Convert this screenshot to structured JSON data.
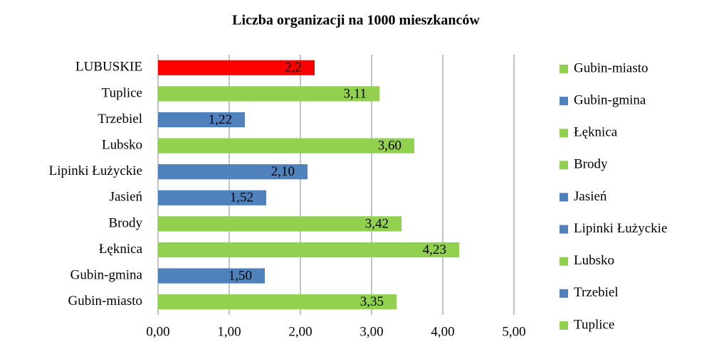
{
  "chart_data": {
    "type": "bar",
    "orientation": "horizontal",
    "title": "Liczba organizacji na 1000 mieszkanców",
    "categories": [
      "Gubin-miasto",
      "Gubin-gmina",
      "Łęknica",
      "Brody",
      "Jasień",
      "Lipinki Łużyckie",
      "Lubsko",
      "Trzebiel",
      "Tuplice",
      "LUBUSKIE"
    ],
    "values": [
      3.35,
      1.5,
      4.23,
      3.42,
      1.52,
      2.1,
      3.6,
      1.22,
      3.11,
      2.2
    ],
    "value_labels": [
      "3,35",
      "1,50",
      "4,23",
      "3,42",
      "1,52",
      "2,10",
      "3,60",
      "1,22",
      "3,11",
      "2,2"
    ],
    "colors": [
      "#92d050",
      "#4f81bd",
      "#92d050",
      "#92d050",
      "#4f81bd",
      "#4f81bd",
      "#92d050",
      "#4f81bd",
      "#92d050",
      "#ff0000"
    ],
    "legend": [
      {
        "name": "Gubin-miasto",
        "color": "#92d050"
      },
      {
        "name": "Gubin-gmina",
        "color": "#4f81bd"
      },
      {
        "name": "Łęknica",
        "color": "#92d050"
      },
      {
        "name": "Brody",
        "color": "#92d050"
      },
      {
        "name": "Jasień",
        "color": "#4f81bd"
      },
      {
        "name": "Lipinki Łużyckie",
        "color": "#4f81bd"
      },
      {
        "name": "Lubsko",
        "color": "#92d050"
      },
      {
        "name": "Trzebiel",
        "color": "#4f81bd"
      },
      {
        "name": "Tuplice",
        "color": "#92d050"
      }
    ],
    "xlim": [
      0,
      5
    ],
    "xticks": [
      {
        "value": 0,
        "label": "0,00"
      },
      {
        "value": 1,
        "label": "1,00"
      },
      {
        "value": 2,
        "label": "2,00"
      },
      {
        "value": 3,
        "label": "3,00"
      },
      {
        "value": 4,
        "label": "4,00"
      },
      {
        "value": 5,
        "label": "5,00"
      }
    ],
    "grid": true
  }
}
